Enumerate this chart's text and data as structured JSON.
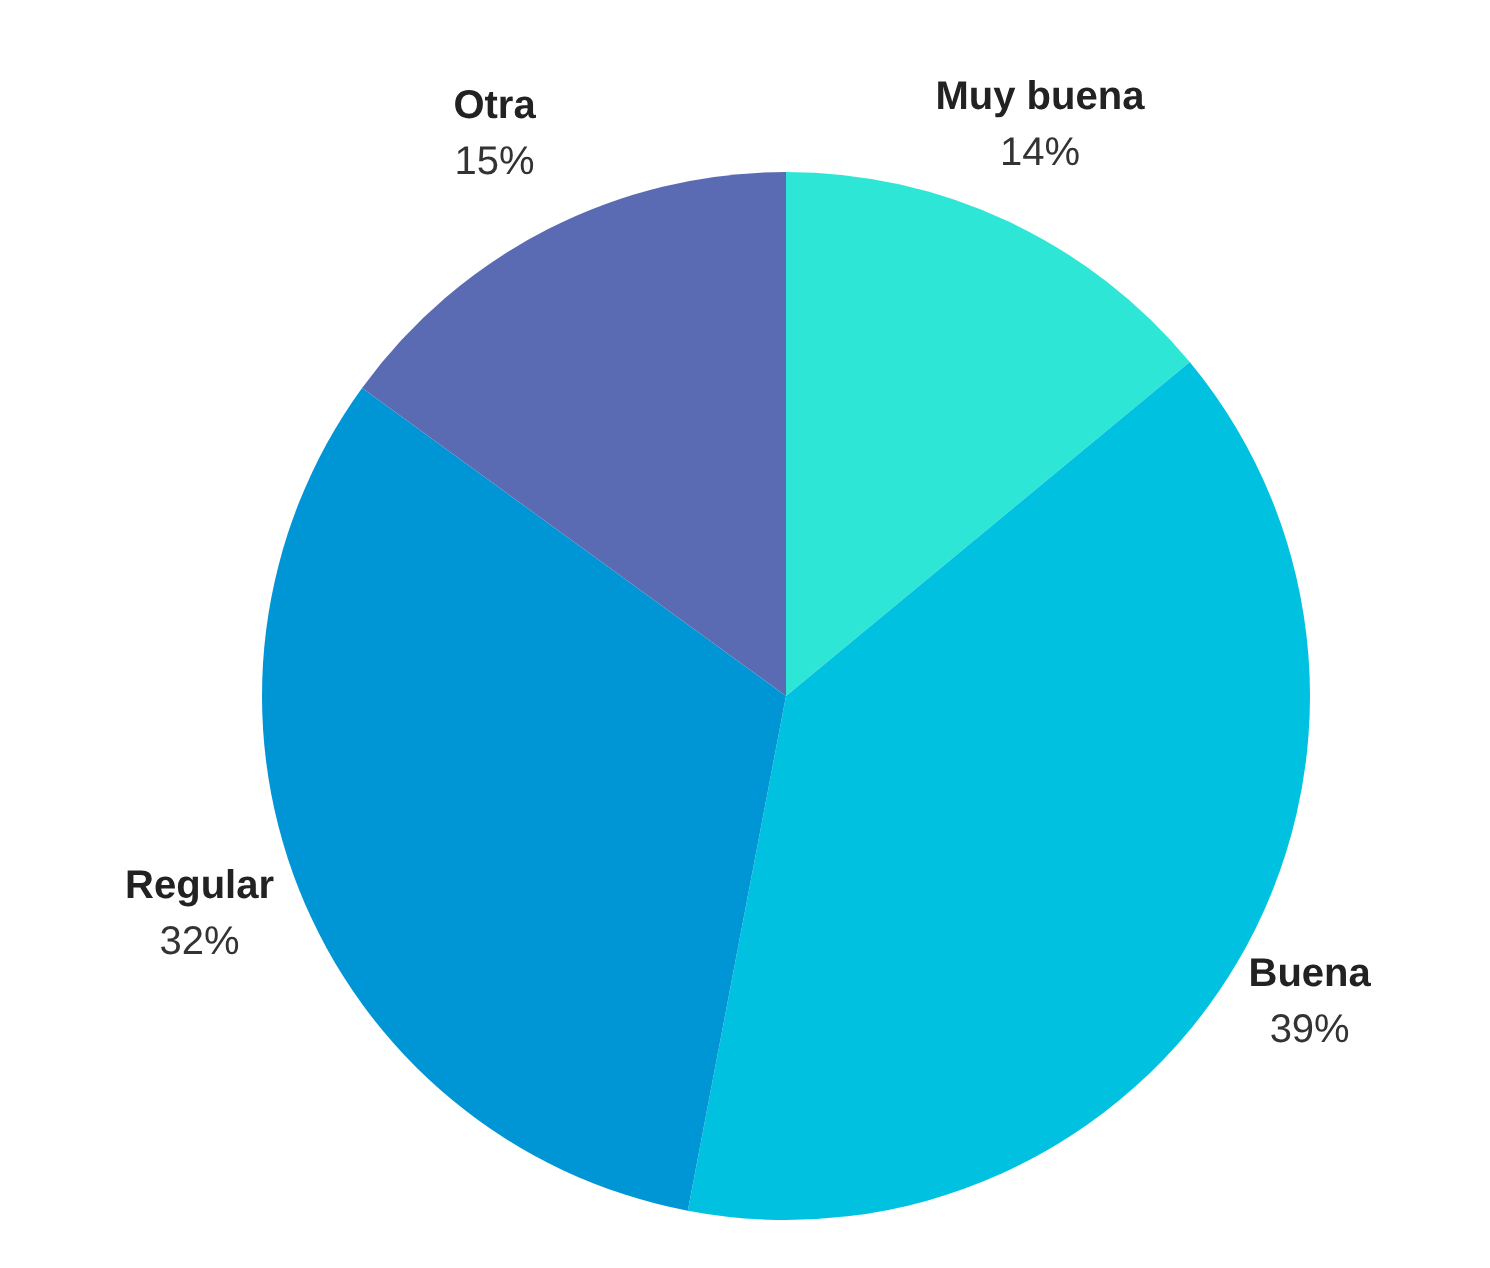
{
  "chart_data": {
    "type": "pie",
    "categories": [
      "Muy buena",
      "Buena",
      "Regular",
      "Otra"
    ],
    "values": [
      14,
      39,
      32,
      15
    ],
    "value_labels": [
      "14%",
      "39%",
      "32%",
      "15%"
    ],
    "colors": [
      "#2ee6d6",
      "#00c2e0",
      "#0096d6",
      "#5a6bb3"
    ]
  }
}
